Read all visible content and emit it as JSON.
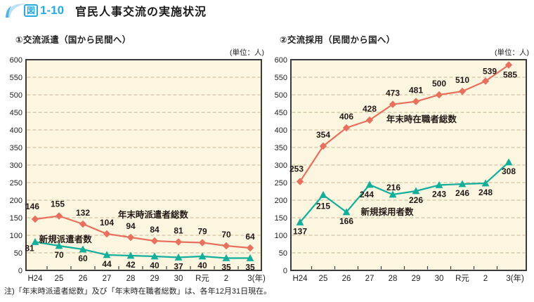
{
  "header": {
    "figure_label": "図",
    "figure_number": "1-10",
    "title": "官民人事交流の実施状況"
  },
  "footnote": "注)「年末時派遣者総数」及び「年末時在職者総数」は、各年12月31日現在。",
  "colors": {
    "accent_blue": "#29ABE2",
    "swoosh_light": "#BDE0F5",
    "swoosh_dark": "#4FB4E4",
    "plot_bg": "#FCF6E0",
    "grid": "#C9B795",
    "axis": "#3A3A3A",
    "text": "#231815",
    "series_red": "#E8705E",
    "series_teal": "#12AF9B"
  },
  "chart_data": [
    {
      "type": "line",
      "title": "①交流派遣（国から民間へ）",
      "unit_label": "(単位：人)",
      "categories": [
        "H24",
        "25",
        "26",
        "27",
        "28",
        "29",
        "30",
        "R元",
        "2",
        "3"
      ],
      "last_category_suffix": "(年)",
      "ylim": [
        0,
        600
      ],
      "ytick_step": 50,
      "grid": true,
      "legend_position": "inline-annotations",
      "series": [
        {
          "name": "年末時派遣者総数",
          "marker": "diamond",
          "color": "#E8705E",
          "values": [
            146,
            155,
            132,
            104,
            94,
            84,
            81,
            79,
            70,
            64
          ],
          "label_side": "above",
          "label_overrides": {
            "0": [
              -4,
              -14
            ],
            "1": [
              -2,
              -13
            ]
          },
          "annotation": {
            "text": "年末時派遣者総数",
            "x_frac": 0.54,
            "value": 158
          }
        },
        {
          "name": "新規派遣者数",
          "marker": "triangle",
          "color": "#12AF9B",
          "values": [
            81,
            70,
            60,
            44,
            42,
            40,
            37,
            40,
            35,
            35
          ],
          "label_side": "below",
          "label_overrides": {
            "0": [
              -8,
              13
            ]
          },
          "annotation": {
            "text": "新規派遣者数",
            "x_frac": 0.168,
            "value": 88
          }
        }
      ]
    },
    {
      "type": "line",
      "title": "②交流採用（民間から国へ）",
      "unit_label": "(単位：人)",
      "categories": [
        "H24",
        "25",
        "26",
        "27",
        "28",
        "29",
        "30",
        "R元",
        "2",
        "3"
      ],
      "last_category_suffix": "(年)",
      "ylim": [
        0,
        600
      ],
      "ytick_step": 50,
      "grid": true,
      "legend_position": "inline-annotations",
      "series": [
        {
          "name": "年末時在職者総数",
          "marker": "diamond",
          "color": "#E8705E",
          "values": [
            253,
            354,
            406,
            428,
            473,
            481,
            500,
            510,
            539,
            585
          ],
          "label_side": "above",
          "label_overrides": {
            "0": [
              -5,
              -14
            ],
            "8": [
              6,
              -10
            ],
            "9": [
              2,
              18
            ]
          },
          "annotation": {
            "text": "年末時在職者総数",
            "x_frac": 0.555,
            "value": 430
          }
        },
        {
          "name": "新規採用者数",
          "marker": "triangle",
          "color": "#12AF9B",
          "values": [
            137,
            215,
            166,
            244,
            216,
            226,
            243,
            246,
            248,
            308
          ],
          "label_side": "below",
          "label_overrides": {
            "1": [
              0,
              20
            ],
            "3": [
              -4,
              18
            ],
            "4": [
              1,
              -6
            ]
          },
          "annotation": {
            "text": "新規採用者数",
            "x_frac": 0.409,
            "value": 166
          }
        }
      ]
    }
  ]
}
